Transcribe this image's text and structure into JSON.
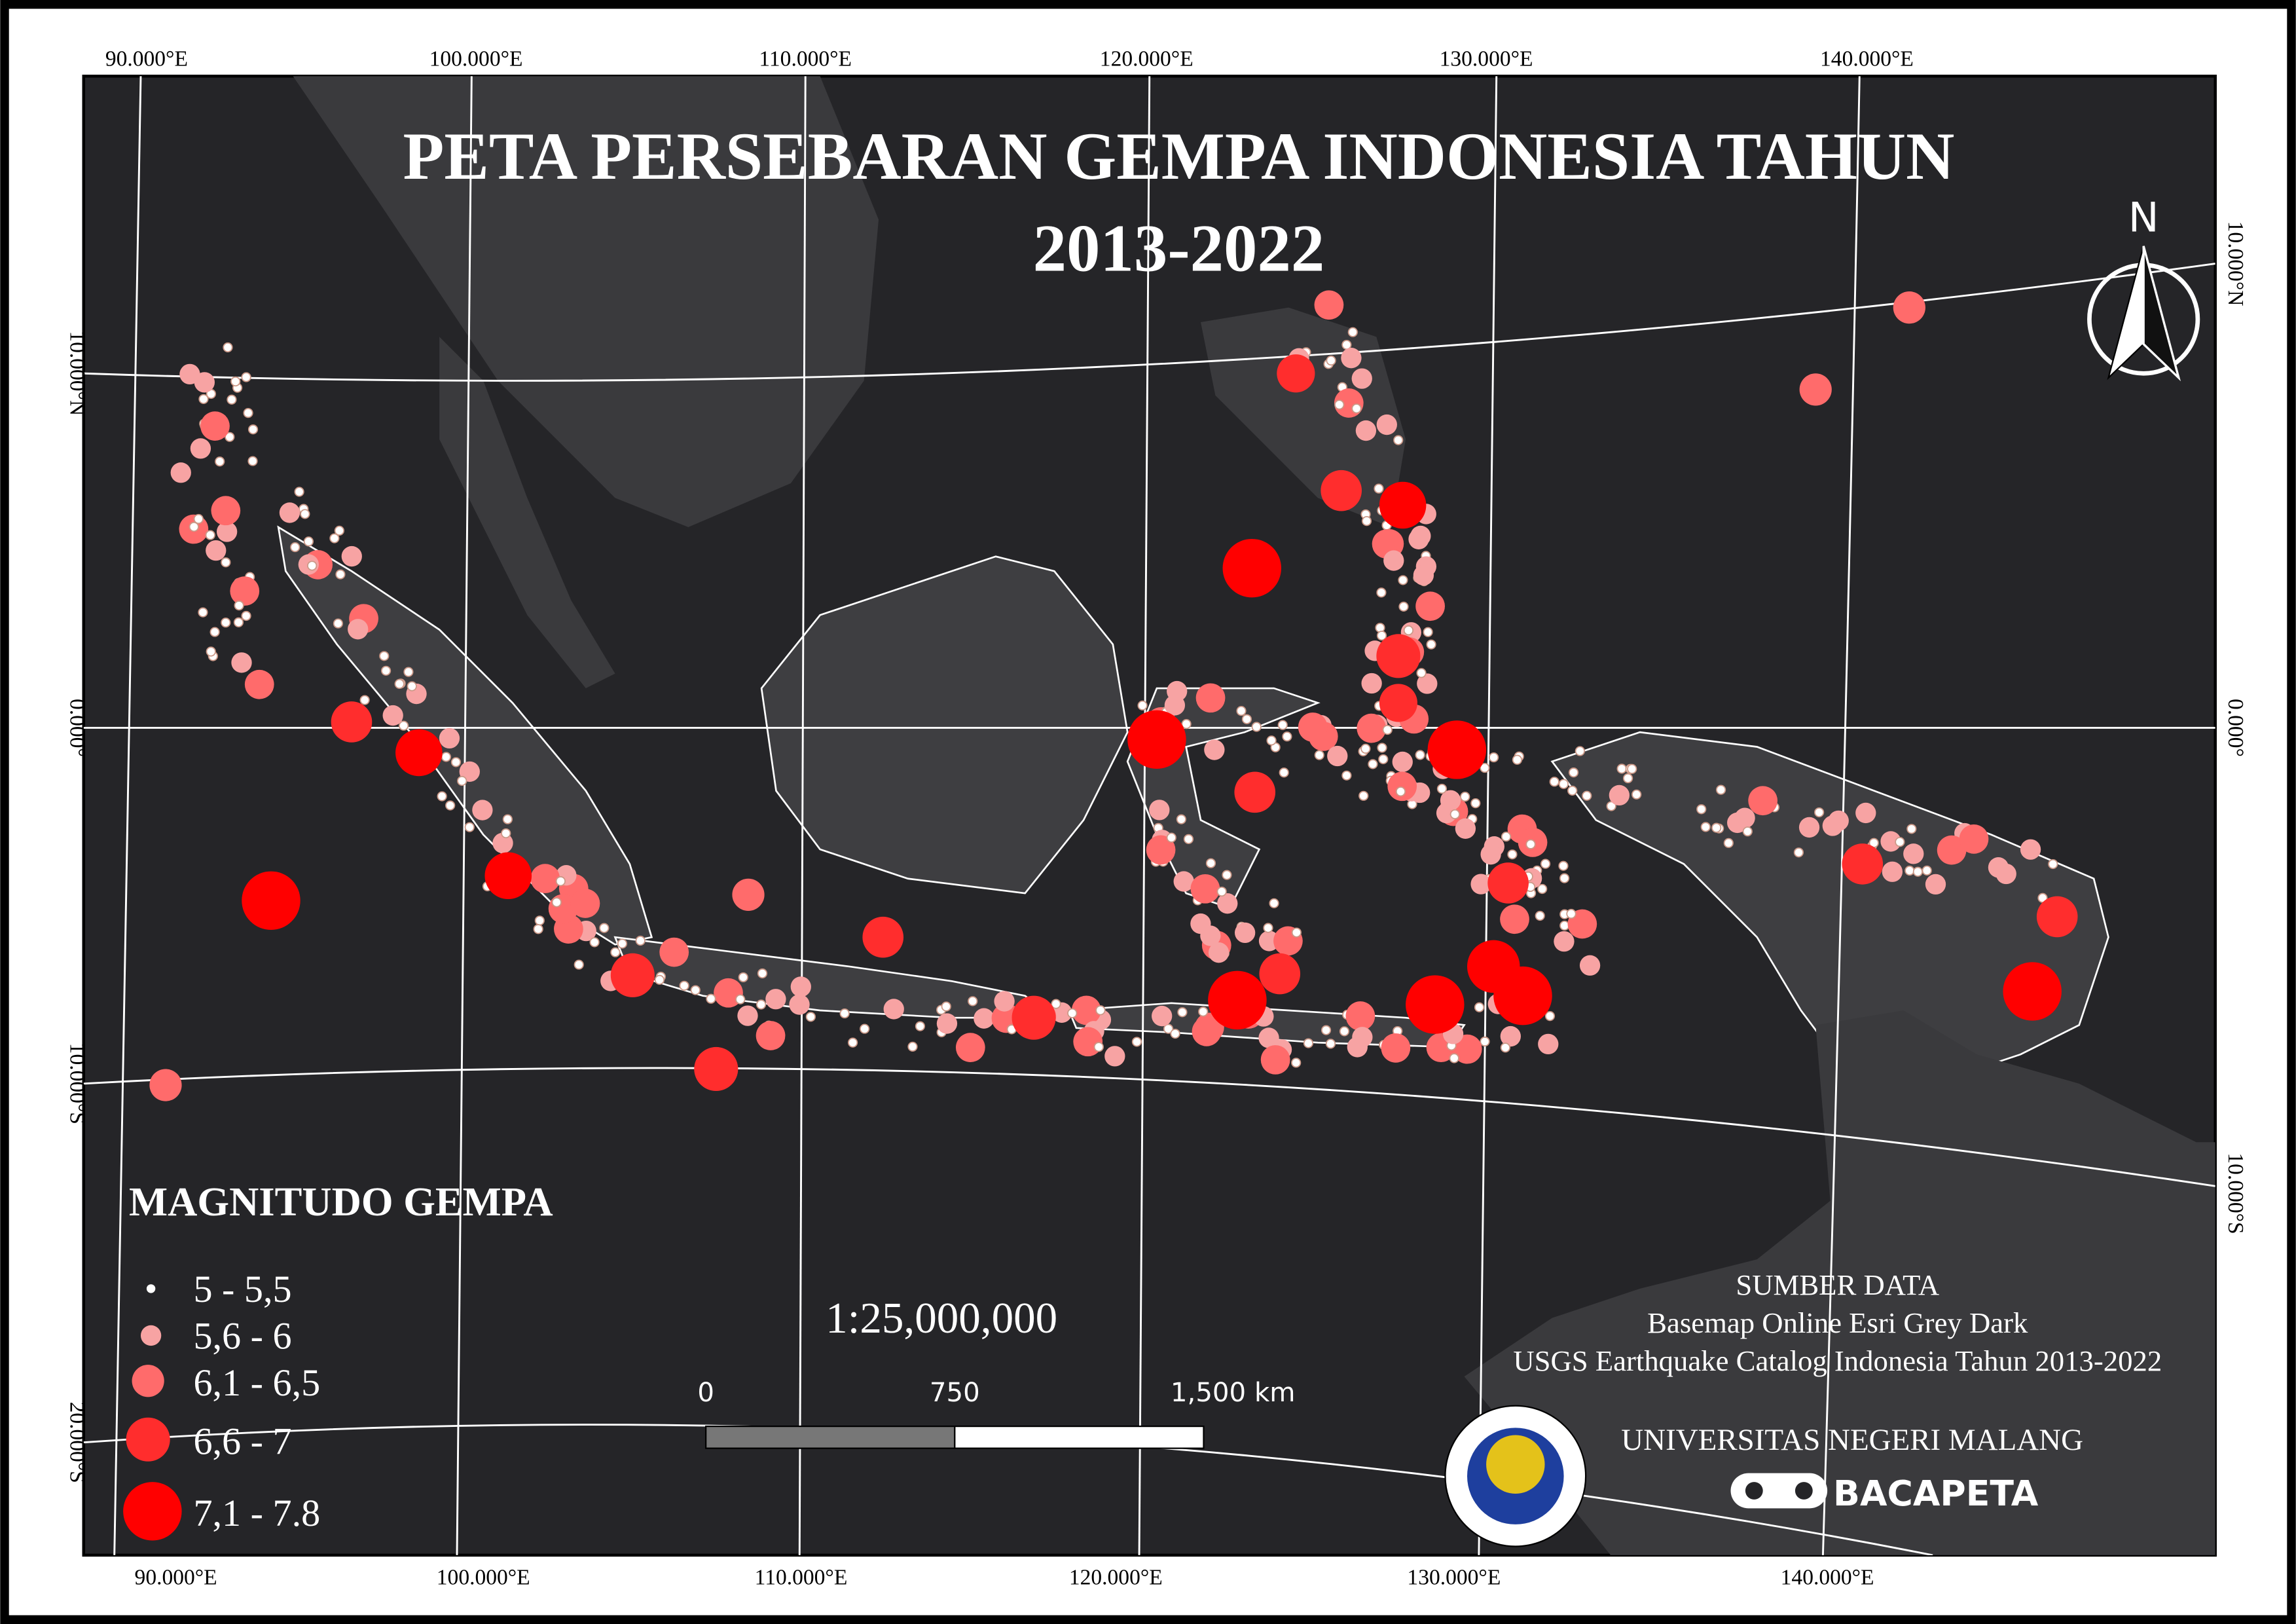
{
  "title": [
    "PETA PERSEBARAN GEMPA INDONESIA TAHUN",
    "2013-2022"
  ],
  "graticule": {
    "top": [
      "90.000°E",
      "100.000°E",
      "110.000°E",
      "120.000°E",
      "130.000°E",
      "140.000°E"
    ],
    "bottom": [
      "90.000°E",
      "100.000°E",
      "110.000°E",
      "120.000°E",
      "130.000°E",
      "140.000°E"
    ],
    "left": [
      "10.000°N",
      "0.000°",
      "10.000°S",
      "20.000°S"
    ],
    "right": [
      "10.000°N",
      "0.000°",
      "10.000°S"
    ]
  },
  "north": "N",
  "legend": {
    "title": "MAGNITUDO GEMPA",
    "items": [
      "5 - 5,5",
      "5,6 - 6",
      "6,1 - 6,5",
      "6,6 - 7",
      "7,1 - 7.8"
    ]
  },
  "scale": {
    "ratio": "1:25,000,000",
    "labels": [
      "0",
      "750",
      "1,500 km"
    ]
  },
  "source": {
    "title": "SUMBER DATA",
    "lines": [
      "Basemap Online Esri Grey Dark",
      "USGS Earthquake Catalog Indonesia Tahun 2013-2022"
    ]
  },
  "institution": "UNIVERSITAS NEGERI MALANG",
  "brand": "BACAPETA"
}
